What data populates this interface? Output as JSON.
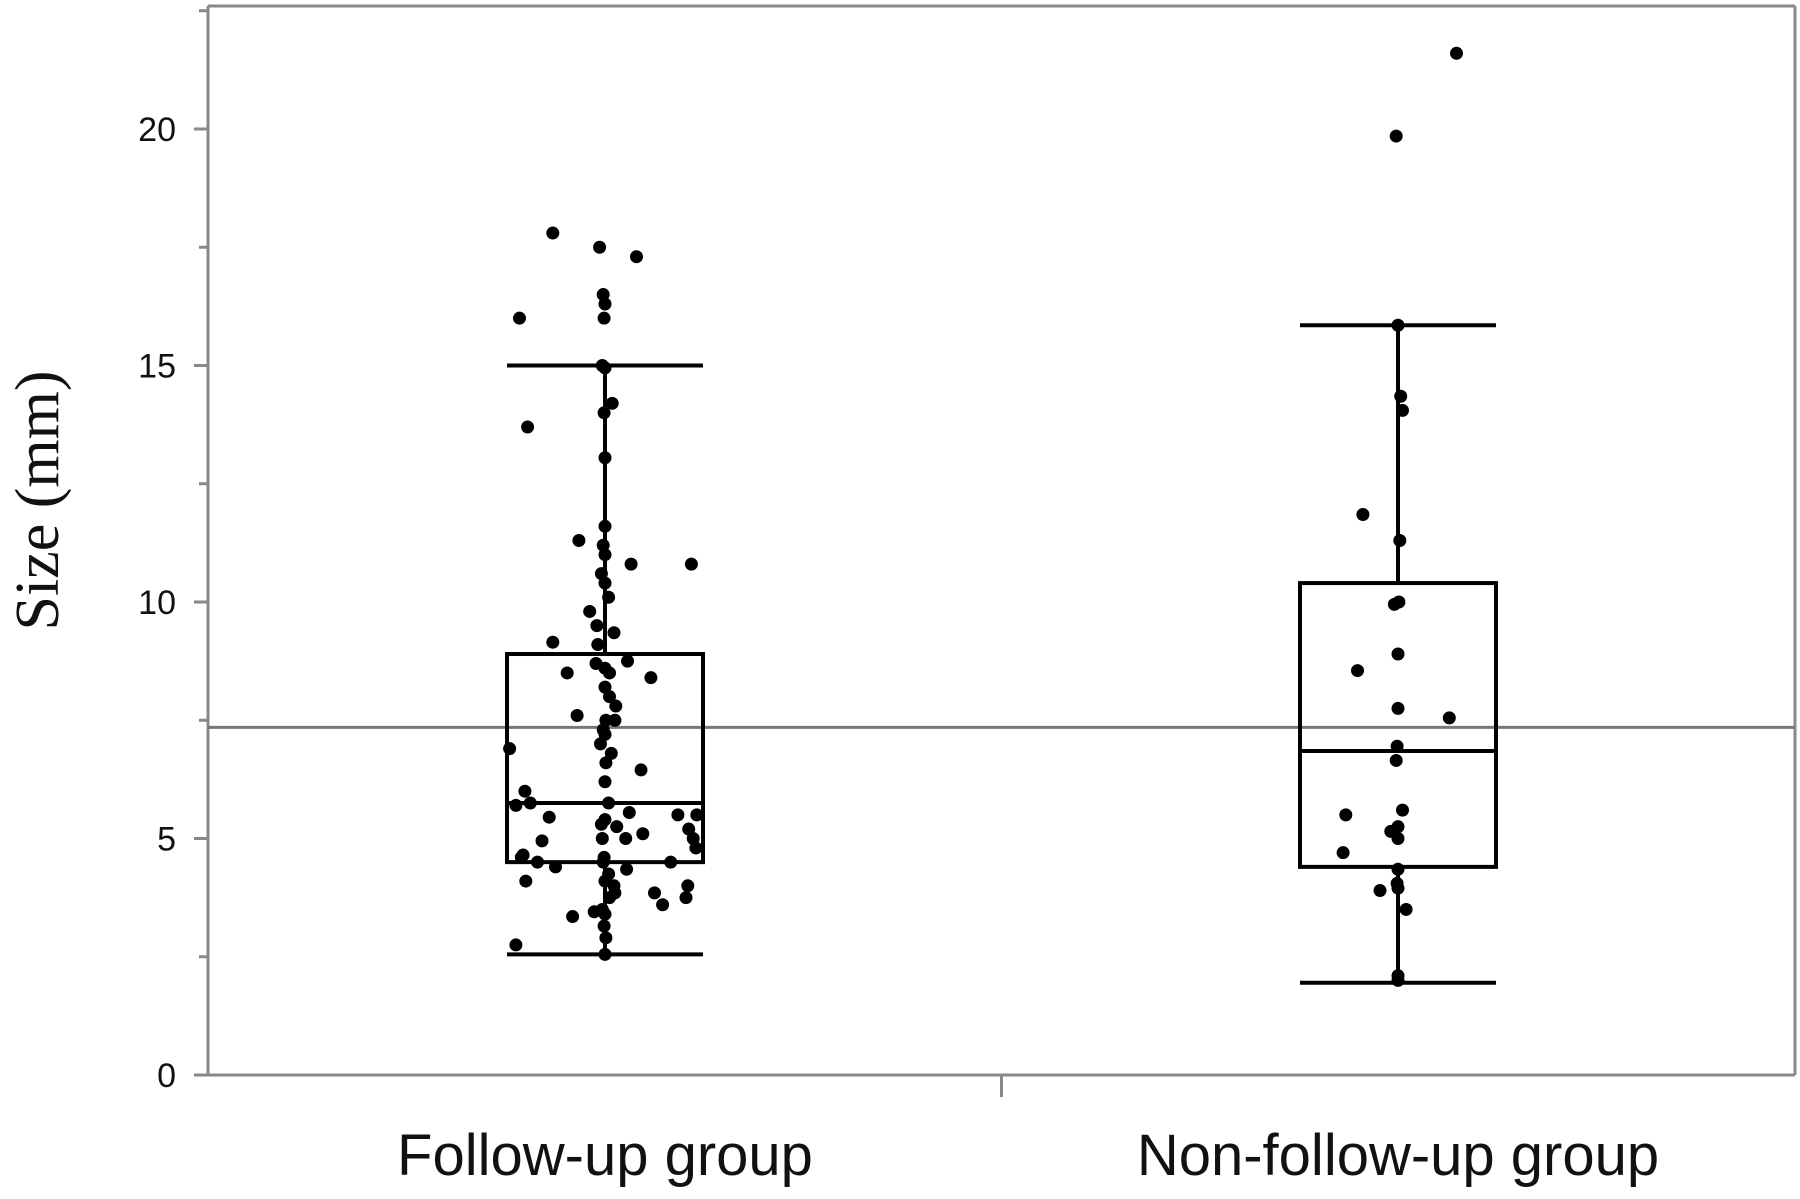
{
  "chart_data": {
    "type": "box",
    "ylabel": "Size (mm)",
    "xlabel": "",
    "title": "",
    "ylim": [
      0,
      22.6
    ],
    "yticks": [
      0,
      5,
      10,
      15,
      20
    ],
    "grid": false,
    "reference_line": 7.35,
    "categories": [
      "Follow-up group",
      "Non-follow-up group"
    ],
    "groups": [
      {
        "name": "Follow-up group",
        "whisker_low": 2.55,
        "q1": 4.5,
        "median": 5.75,
        "q3": 8.9,
        "whisker_high": 15.0,
        "points": [
          [
            -0.58,
            17.8
          ],
          [
            -0.06,
            17.5
          ],
          [
            0.35,
            17.3
          ],
          [
            -0.02,
            16.5
          ],
          [
            0.0,
            16.3
          ],
          [
            -0.01,
            16.0
          ],
          [
            -0.95,
            16.0
          ],
          [
            -0.03,
            15.0
          ],
          [
            0.0,
            14.95
          ],
          [
            0.08,
            14.2
          ],
          [
            -0.01,
            14.0
          ],
          [
            -0.86,
            13.7
          ],
          [
            0.0,
            13.05
          ],
          [
            0.0,
            11.6
          ],
          [
            -0.02,
            11.2
          ],
          [
            0.0,
            11.0
          ],
          [
            -0.29,
            11.3
          ],
          [
            0.29,
            10.8
          ],
          [
            0.96,
            10.8
          ],
          [
            -0.04,
            10.6
          ],
          [
            0.0,
            10.4
          ],
          [
            0.04,
            10.1
          ],
          [
            -0.17,
            9.8
          ],
          [
            -0.09,
            9.5
          ],
          [
            0.1,
            9.35
          ],
          [
            -0.58,
            9.15
          ],
          [
            -0.08,
            9.1
          ],
          [
            0.25,
            8.75
          ],
          [
            -0.42,
            8.5
          ],
          [
            -0.1,
            8.7
          ],
          [
            0.0,
            8.6
          ],
          [
            0.05,
            8.5
          ],
          [
            0.51,
            8.4
          ],
          [
            0.0,
            8.2
          ],
          [
            0.05,
            8.0
          ],
          [
            0.12,
            7.8
          ],
          [
            -0.31,
            7.6
          ],
          [
            0.01,
            7.5
          ],
          [
            0.11,
            7.5
          ],
          [
            -0.02,
            7.3
          ],
          [
            0.0,
            7.2
          ],
          [
            -0.05,
            7.0
          ],
          [
            0.07,
            6.8
          ],
          [
            -1.06,
            6.9
          ],
          [
            0.01,
            6.6
          ],
          [
            0.4,
            6.45
          ],
          [
            0.0,
            6.2
          ],
          [
            -0.89,
            6.0
          ],
          [
            -0.99,
            5.7
          ],
          [
            -0.83,
            5.75
          ],
          [
            0.04,
            5.75
          ],
          [
            0.27,
            5.55
          ],
          [
            0.81,
            5.5
          ],
          [
            1.02,
            5.5
          ],
          [
            -0.62,
            5.45
          ],
          [
            0.0,
            5.4
          ],
          [
            -0.04,
            5.3
          ],
          [
            0.13,
            5.25
          ],
          [
            0.42,
            5.1
          ],
          [
            0.93,
            5.2
          ],
          [
            0.98,
            5.0
          ],
          [
            0.23,
            5.0
          ],
          [
            -0.03,
            5.0
          ],
          [
            -0.7,
            4.95
          ],
          [
            1.01,
            4.8
          ],
          [
            -0.91,
            4.65
          ],
          [
            -0.01,
            4.6
          ],
          [
            -0.93,
            4.6
          ],
          [
            -0.75,
            4.5
          ],
          [
            -0.02,
            4.5
          ],
          [
            0.73,
            4.5
          ],
          [
            -0.55,
            4.4
          ],
          [
            0.24,
            4.35
          ],
          [
            0.04,
            4.25
          ],
          [
            -0.88,
            4.1
          ],
          [
            0.0,
            4.1
          ],
          [
            0.1,
            4.0
          ],
          [
            0.92,
            4.0
          ],
          [
            0.11,
            3.85
          ],
          [
            0.55,
            3.85
          ],
          [
            0.9,
            3.75
          ],
          [
            0.05,
            3.75
          ],
          [
            0.64,
            3.6
          ],
          [
            -0.03,
            3.5
          ],
          [
            -0.12,
            3.45
          ],
          [
            -0.36,
            3.35
          ],
          [
            0.0,
            3.4
          ],
          [
            -0.01,
            3.15
          ],
          [
            0.01,
            2.9
          ],
          [
            0.0,
            2.55
          ],
          [
            -0.99,
            2.75
          ]
        ]
      },
      {
        "name": "Non-follow-up group",
        "whisker_low": 1.95,
        "q1": 4.4,
        "median": 6.85,
        "q3": 10.4,
        "whisker_high": 15.85,
        "points": [
          [
            0.65,
            21.6
          ],
          [
            -0.02,
            19.85
          ],
          [
            0.0,
            15.85
          ],
          [
            0.03,
            14.35
          ],
          [
            0.05,
            14.05
          ],
          [
            -0.39,
            11.85
          ],
          [
            0.02,
            11.3
          ],
          [
            0.01,
            10.0
          ],
          [
            -0.04,
            9.95
          ],
          [
            0.0,
            8.9
          ],
          [
            -0.45,
            8.55
          ],
          [
            0.0,
            7.75
          ],
          [
            0.57,
            7.55
          ],
          [
            -0.01,
            6.95
          ],
          [
            -0.02,
            6.65
          ],
          [
            0.05,
            5.6
          ],
          [
            -0.58,
            5.5
          ],
          [
            0.0,
            5.25
          ],
          [
            -0.08,
            5.15
          ],
          [
            0.0,
            5.0
          ],
          [
            -0.61,
            4.7
          ],
          [
            0.0,
            4.35
          ],
          [
            -0.01,
            4.05
          ],
          [
            0.0,
            3.95
          ],
          [
            -0.2,
            3.9
          ],
          [
            0.09,
            3.5
          ],
          [
            0.0,
            2.1
          ],
          [
            0.0,
            2.0
          ]
        ]
      }
    ]
  }
}
